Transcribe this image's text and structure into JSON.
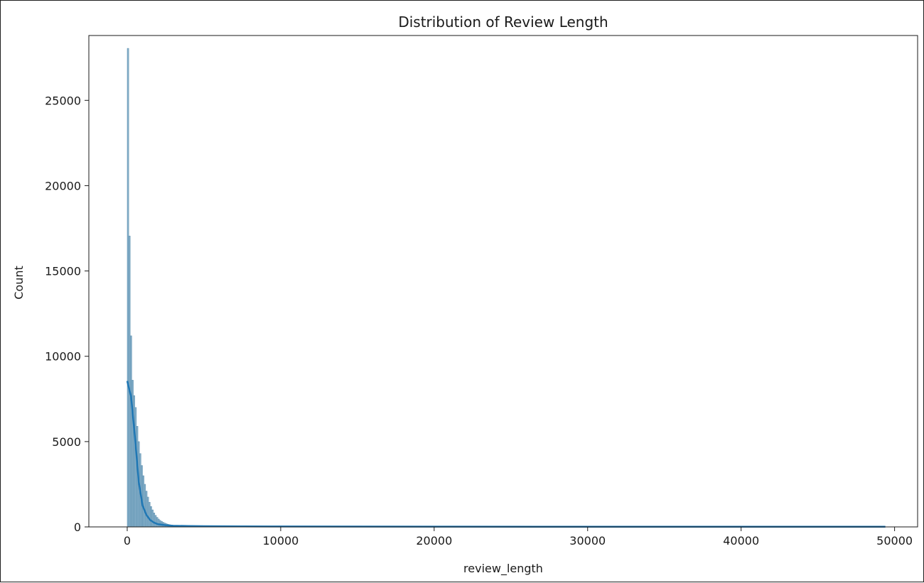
{
  "chart_data": {
    "type": "histogram",
    "title": "Distribution of Review Length",
    "xlabel": "review_length",
    "ylabel": "Count",
    "xlim": [
      -2500,
      51500
    ],
    "ylim": [
      0,
      28800
    ],
    "x_ticks": [
      0,
      10000,
      20000,
      30000,
      40000,
      50000
    ],
    "y_ticks": [
      0,
      5000,
      10000,
      15000,
      20000,
      25000
    ],
    "x_tick_labels": [
      "0",
      "10000",
      "20000",
      "30000",
      "40000",
      "50000"
    ],
    "y_tick_labels": [
      "0",
      "5000",
      "10000",
      "15000",
      "20000",
      "25000"
    ],
    "grid": false,
    "bar_color": "#5b93b6",
    "line_color": "#1f77b4",
    "bins": {
      "start": 0,
      "width": 100,
      "counts": [
        28050,
        17050,
        11200,
        8600,
        7700,
        7000,
        5900,
        5000,
        4300,
        3600,
        3000,
        2500,
        2100,
        1750,
        1450,
        1200,
        1000,
        820,
        680,
        560,
        460,
        380,
        320,
        270,
        230,
        190,
        160,
        135,
        115,
        95,
        80,
        70,
        60,
        50,
        42,
        36,
        30,
        26,
        22,
        18
      ]
    },
    "kde": {
      "x": [
        0,
        250,
        500,
        750,
        1000,
        1250,
        1500,
        1750,
        2000,
        2500,
        3000,
        4000,
        5000,
        7500,
        10000,
        15000,
        20000,
        30000,
        40000,
        49400
      ],
      "y": [
        8550,
        7650,
        5300,
        2650,
        1250,
        700,
        400,
        250,
        160,
        100,
        70,
        50,
        40,
        30,
        25,
        20,
        15,
        12,
        10,
        10
      ]
    }
  }
}
